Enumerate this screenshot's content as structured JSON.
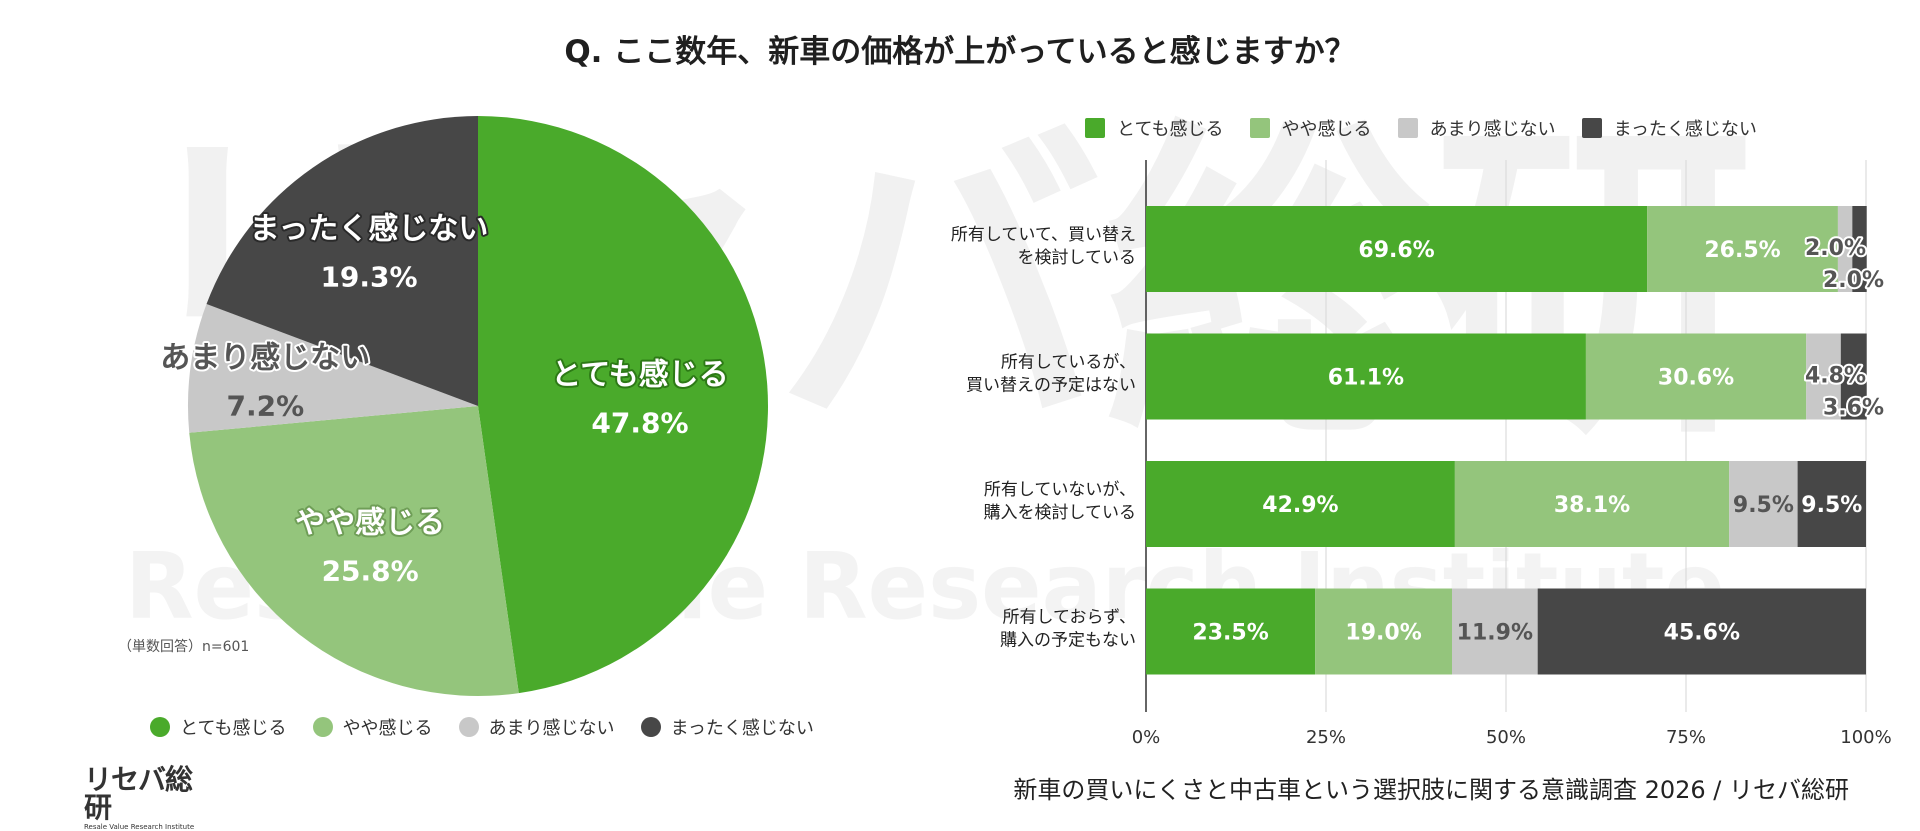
{
  "title": "Q. ここ数年、新車の価格が上がっていると感じますか？",
  "watermark": {
    "logo_text": "リセバ総研",
    "sub_text": "Resale Value Research Institute"
  },
  "colors": {
    "strong": "#4aaa2b",
    "somewhat": "#94c57c",
    "not_much": "#c8c8c8",
    "none": "#474747"
  },
  "footer": {
    "survey_title": "新車の買いにくさと中古車という選択肢に関する意識調査 2026 / リセバ総研"
  },
  "chart_data": [
    {
      "type": "pie",
      "categories": [
        "とても感じる",
        "やや感じる",
        "あまり感じない",
        "まったく感じない"
      ],
      "values": [
        47.8,
        25.8,
        7.2,
        19.3
      ],
      "labels": [
        "47.8%",
        "25.8%",
        "7.2%",
        "19.3%"
      ],
      "note": "（単数回答）n=601",
      "legend": [
        "とても感じる",
        "やや感じる",
        "あまり感じない",
        "まったく感じない"
      ],
      "legend_position": "bottom"
    },
    {
      "type": "bar",
      "orientation": "horizontal-stacked-100",
      "categories": [
        [
          "所有していて、買い替え",
          "を検討している"
        ],
        [
          "所有しているが、",
          "買い替えの予定はない"
        ],
        [
          "所有していないが、",
          "購入を検討している"
        ],
        [
          "所有しておらず、",
          "購入の予定もない"
        ]
      ],
      "series": [
        {
          "name": "とても感じる",
          "values": [
            69.6,
            61.1,
            42.9,
            23.5
          ],
          "labels": [
            "69.6%",
            "61.1%",
            "42.9%",
            "23.5%"
          ]
        },
        {
          "name": "やや感じる",
          "values": [
            26.5,
            30.6,
            38.1,
            19.0
          ],
          "labels": [
            "26.5%",
            "30.6%",
            "38.1%",
            "19.0%"
          ]
        },
        {
          "name": "あまり感じない",
          "values": [
            2.0,
            4.8,
            9.5,
            11.9
          ],
          "labels": [
            "2.0%",
            "4.8%",
            "9.5%",
            "11.9%"
          ]
        },
        {
          "name": "まったく感じない",
          "values": [
            2.0,
            3.6,
            9.5,
            45.6
          ],
          "labels": [
            "2.0%",
            "3.6%",
            "9.5%",
            "45.6%"
          ]
        }
      ],
      "xlim": [
        0,
        100
      ],
      "xticks": [
        "0%",
        "25%",
        "50%",
        "75%",
        "100%"
      ],
      "grid": true,
      "legend_position": "top"
    }
  ]
}
